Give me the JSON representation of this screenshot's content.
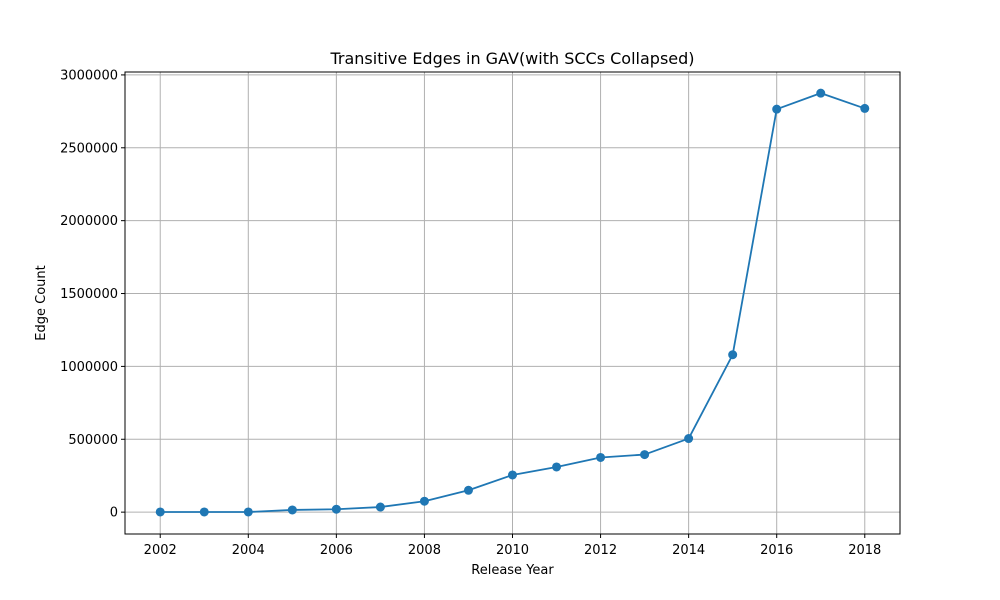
{
  "chart_data": {
    "type": "line",
    "title": "Transitive Edges in GAV(with SCCs Collapsed)",
    "xlabel": "Release Year",
    "ylabel": "Edge Count",
    "xlim": [
      2001.2,
      2018.8
    ],
    "ylim": [
      -150000,
      3020000
    ],
    "xticks": [
      2002,
      2004,
      2006,
      2008,
      2010,
      2012,
      2014,
      2016,
      2018
    ],
    "yticks": [
      0,
      500000,
      1000000,
      1500000,
      2000000,
      2500000,
      3000000
    ],
    "xtick_labels": [
      "2002",
      "2004",
      "2006",
      "2008",
      "2010",
      "2012",
      "2014",
      "2016",
      "2018"
    ],
    "ytick_labels": [
      "0",
      "500000",
      "1000000",
      "1500000",
      "2000000",
      "2500000",
      "3000000"
    ],
    "grid": true,
    "series": [
      {
        "color": "#1f77b4",
        "marker": "circle",
        "x": [
          2002,
          2003,
          2004,
          2005,
          2006,
          2007,
          2008,
          2009,
          2010,
          2011,
          2012,
          2013,
          2014,
          2015,
          2016,
          2017,
          2018
        ],
        "y": [
          1000,
          1000,
          1000,
          15000,
          20000,
          35000,
          75000,
          150000,
          255000,
          310000,
          375000,
          395000,
          505000,
          1080000,
          2765000,
          2875000,
          2770000
        ]
      }
    ]
  }
}
